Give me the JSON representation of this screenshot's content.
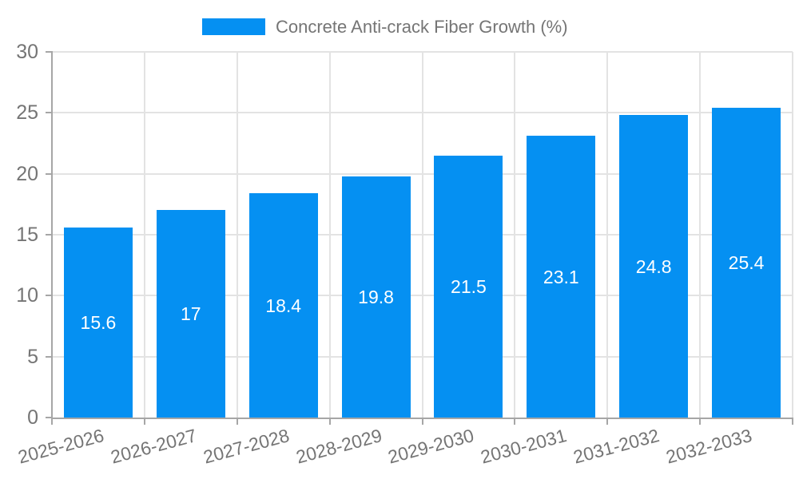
{
  "legend": {
    "label": "Concrete Anti-crack Fiber Growth (%)"
  },
  "chart_data": {
    "type": "bar",
    "title": "",
    "xlabel": "",
    "ylabel": "",
    "categories": [
      "2025-2026",
      "2026-2027",
      "2027-2028",
      "2028-2029",
      "2029-2030",
      "2030-2031",
      "2031-2032",
      "2032-2033"
    ],
    "values": [
      15.6,
      17,
      18.4,
      19.8,
      21.5,
      23.1,
      24.8,
      25.4
    ],
    "series_name": "Concrete Anti-crack Fiber Growth (%)",
    "ylim": [
      0,
      30
    ],
    "yticks": [
      0,
      5,
      10,
      15,
      20,
      25,
      30
    ],
    "grid": true,
    "legend_position": "top-center",
    "bar_color": "#0590f2",
    "value_label_color": "#ffffff",
    "tick_label_color": "#757575",
    "gridline_color": "#e3e3e3",
    "axis_color": "#a6a6a6"
  }
}
